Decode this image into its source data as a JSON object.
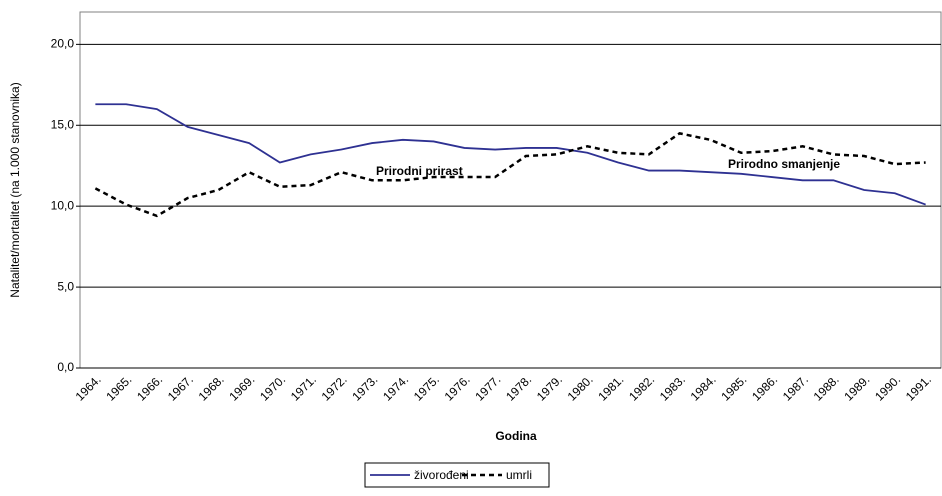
{
  "chart_data": {
    "type": "line",
    "y_label": "Natalitet/mortalitet (na 1.000 stanovnika)",
    "x_label": "Godina",
    "annotations": [
      "Prirodni prirast",
      "Prirodno smanjenje"
    ],
    "categories": [
      "1964.",
      "1965.",
      "1966.",
      "1967.",
      "1968.",
      "1969.",
      "1970.",
      "1971.",
      "1972.",
      "1973.",
      "1974.",
      "1975.",
      "1976.",
      "1977.",
      "1978.",
      "1979.",
      "1980.",
      "1981.",
      "1982.",
      "1983.",
      "1984.",
      "1985.",
      "1986.",
      "1987.",
      "1988.",
      "1989.",
      "1990.",
      "1991."
    ],
    "series": [
      {
        "name": "živorođeni",
        "color": "#2e3192",
        "dashed": false,
        "values": [
          16.3,
          16.3,
          16.0,
          14.9,
          14.4,
          13.9,
          12.7,
          13.2,
          13.5,
          13.9,
          14.1,
          14.0,
          13.6,
          13.5,
          13.6,
          13.6,
          13.3,
          12.7,
          12.2,
          12.2,
          12.1,
          12.0,
          11.8,
          11.6,
          11.6,
          11.0,
          10.8,
          10.1
        ]
      },
      {
        "name": "umrli",
        "color": "#000000",
        "dashed": true,
        "values": [
          11.1,
          10.1,
          9.4,
          10.5,
          11.0,
          12.1,
          11.2,
          11.3,
          12.1,
          11.6,
          11.6,
          11.8,
          11.8,
          11.8,
          13.1,
          13.2,
          13.7,
          13.3,
          13.2,
          14.5,
          14.1,
          13.3,
          13.4,
          13.7,
          13.2,
          13.1,
          12.6,
          12.7
        ]
      }
    ],
    "ylim": [
      0,
      22
    ],
    "yticks": [
      {
        "value": 0,
        "label": "0,0"
      },
      {
        "value": 5,
        "label": "5,0"
      },
      {
        "value": 10,
        "label": "10,0"
      },
      {
        "value": 15,
        "label": "15,0"
      },
      {
        "value": 20,
        "label": "20,0"
      }
    ],
    "grid": true
  }
}
